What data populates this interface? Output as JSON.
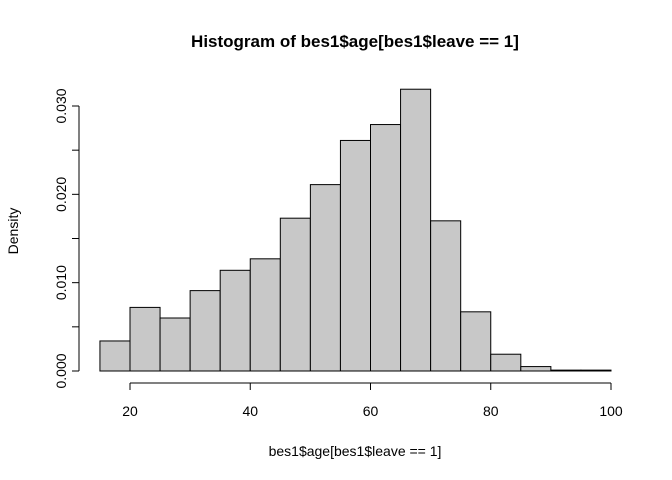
{
  "chart_data": {
    "type": "bar",
    "title": "Histogram of bes1$age[bes1$leave == 1]",
    "xlabel": "bes1$age[bes1$leave == 1]",
    "ylabel": "Density",
    "xlim": [
      15,
      100
    ],
    "ylim": [
      0,
      0.0318
    ],
    "x_ticks": [
      20,
      40,
      60,
      80,
      100
    ],
    "y_ticks": [
      0.0,
      0.01,
      0.02,
      0.03
    ],
    "x_tick_labels": [
      "20",
      "40",
      "60",
      "80",
      "100"
    ],
    "y_tick_labels": [
      "0.000",
      "0.010",
      "0.020",
      "0.030"
    ],
    "bin_edges": [
      15,
      20,
      25,
      30,
      35,
      40,
      45,
      50,
      55,
      60,
      65,
      70,
      75,
      80,
      85,
      90,
      95,
      100
    ],
    "values": [
      0.0034,
      0.0072,
      0.006,
      0.0091,
      0.0114,
      0.0127,
      0.0173,
      0.0211,
      0.0261,
      0.0279,
      0.0319,
      0.017,
      0.0067,
      0.0019,
      0.0005,
      0.0001,
      0.0001
    ],
    "bar_color": "#c8c8c8",
    "edge_color": "#000000",
    "grid": false,
    "legend": "none"
  }
}
